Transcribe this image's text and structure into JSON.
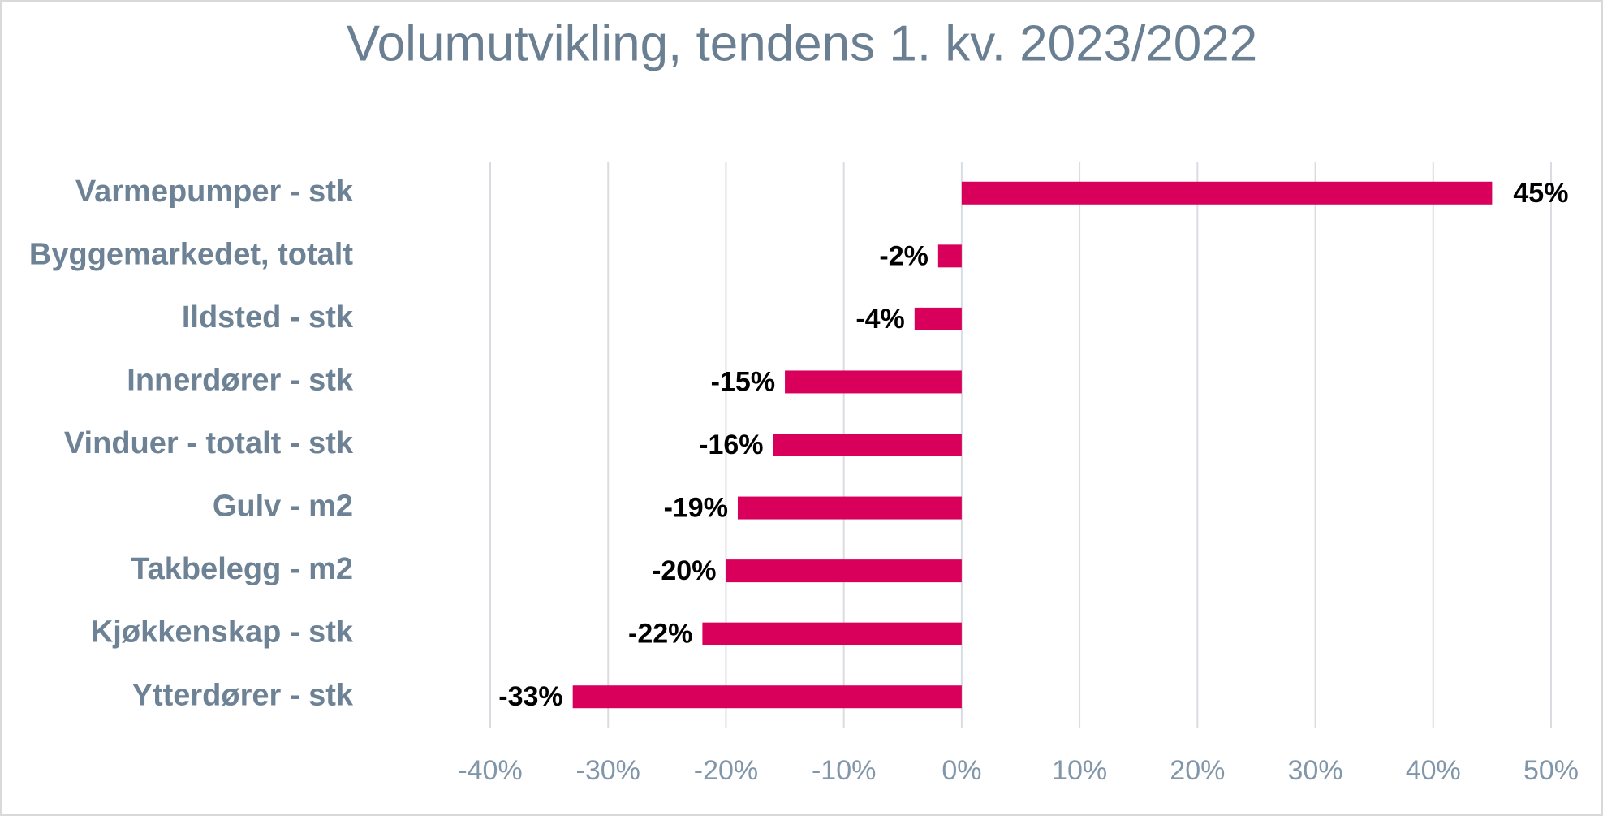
{
  "chart_data": {
    "type": "hbar",
    "title": "Volumutvikling, tendens 1. kv. 2023/2022",
    "categories": [
      "Varmepumper - stk",
      "Byggemarkedet, totalt",
      "Ildsted - stk",
      "Innerdører - stk",
      "Vinduer - totalt - stk",
      "Gulv - m2",
      "Takbelegg - m2",
      "Kjøkkenskap - stk",
      "Ytterdører - stk"
    ],
    "values": [
      45,
      -2,
      -4,
      -15,
      -16,
      -19,
      -20,
      -22,
      -33
    ],
    "value_labels": [
      "45%",
      "-2%",
      "-4%",
      "-15%",
      "-16%",
      "-19%",
      "-20%",
      "-22%",
      "-33%"
    ],
    "color": "#d8005a",
    "xlim": [
      -40,
      50
    ],
    "xticks": [
      {
        "value": -40,
        "label": "-40%"
      },
      {
        "value": -30,
        "label": "-30%"
      },
      {
        "value": -20,
        "label": "-20%"
      },
      {
        "value": -10,
        "label": "-10%"
      },
      {
        "value": 0,
        "label": "0%"
      },
      {
        "value": 10,
        "label": "10%"
      },
      {
        "value": 20,
        "label": "20%"
      },
      {
        "value": 30,
        "label": "30%"
      },
      {
        "value": 40,
        "label": "40%"
      },
      {
        "value": 50,
        "label": "50%"
      }
    ],
    "grid": true
  }
}
